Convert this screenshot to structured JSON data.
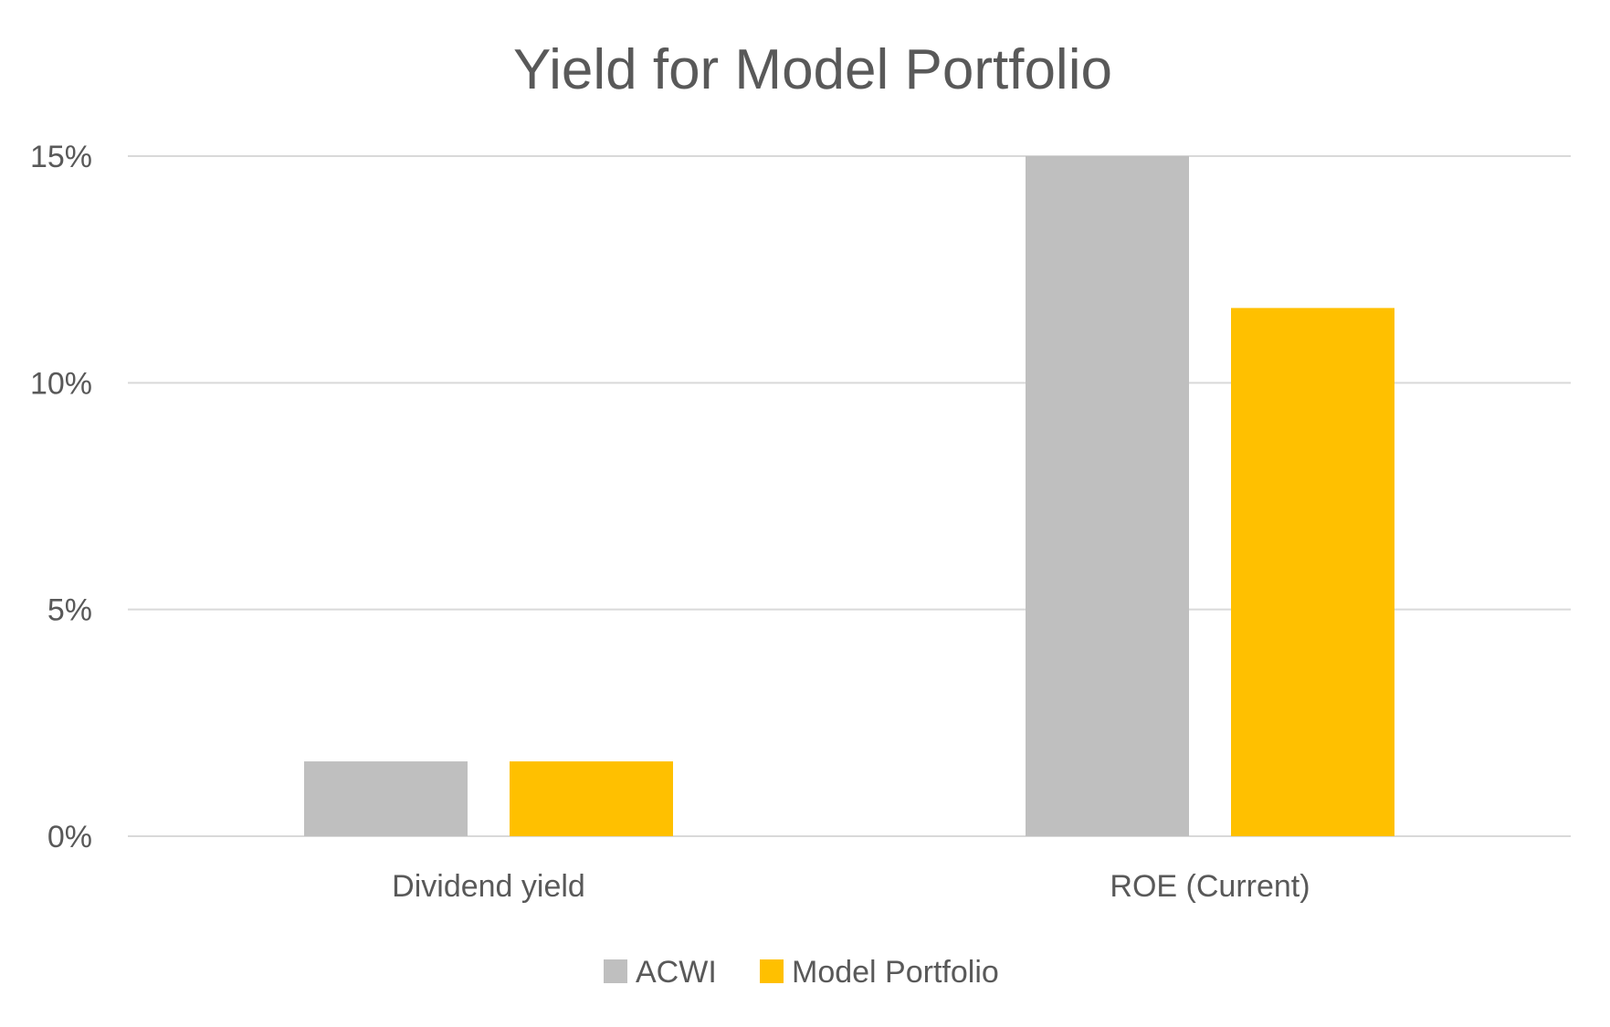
{
  "chart_data": {
    "type": "bar",
    "title": "Yield for Model Portfolio",
    "xlabel": "",
    "ylabel": "",
    "categories": [
      "Dividend yield",
      "ROE (Current)"
    ],
    "series": [
      {
        "name": "ACWI",
        "color": "#BFBFBF",
        "values": [
          1.65,
          15.0
        ]
      },
      {
        "name": "Model Portfolio",
        "color": "#FFC000",
        "values": [
          1.65,
          11.65
        ]
      }
    ],
    "ylim": [
      0,
      15
    ],
    "yticks": [
      0,
      5,
      10,
      15
    ],
    "ytick_labels": [
      "0%",
      "5%",
      "10%",
      "15%"
    ],
    "grid": true,
    "gridline_color": "#D9D9D9",
    "legend": "bottom-center"
  }
}
